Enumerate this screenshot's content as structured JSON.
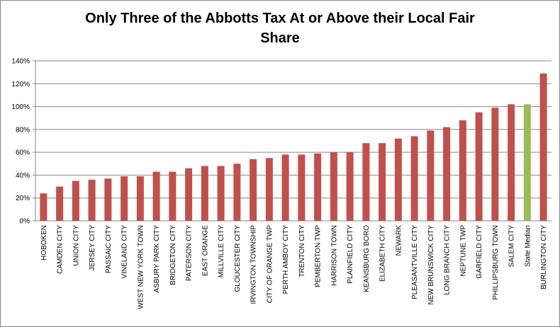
{
  "chart_data": {
    "type": "bar",
    "title": "Only Three of the Abbotts Tax At or Above their Local Fair Share",
    "categories": [
      "HOBOKEN",
      "CAMDEN CITY",
      "UNION CITY",
      "JERSEY CITY",
      "PASSAIC CITY",
      "VINELAND CITY",
      "WEST NEW YORK TOWN",
      "ASBURY PARK CITY",
      "BRIDGETON CITY",
      "PATERSON CITY",
      "EAST ORANGE",
      "MILLVILLE CITY",
      "GLOUCESTER CITY",
      "IRVINGTON TOWNSHIP",
      "CITY OF ORANGE TWP",
      "PERTH AMBOY CITY",
      "TRENTON CITY",
      "PEMBERTON TWP",
      "HARRISON TOWN",
      "PLAINFIELD CITY",
      "KEANSBURG BORO",
      "ELIZABETH CITY",
      "NEWARK",
      "PLEASANTVILLE CITY",
      "NEW BRUNSWICK CITY",
      "LONG BRANCH CITY",
      "NEPTUNE TWP",
      "GARFIELD CITY",
      "PHILLIPSBURG TOWN",
      "SALEM CITY",
      "State Median",
      "BURLINGTON CITY"
    ],
    "values": [
      24,
      30,
      35,
      36,
      37,
      39,
      39,
      43,
      43,
      46,
      48,
      48,
      50,
      54,
      55,
      58,
      58,
      59,
      60,
      60,
      68,
      68,
      72,
      74,
      79,
      82,
      88,
      95,
      99,
      102,
      102,
      129
    ],
    "colors": [
      "#c0504d",
      "#c0504d",
      "#c0504d",
      "#c0504d",
      "#c0504d",
      "#c0504d",
      "#c0504d",
      "#c0504d",
      "#c0504d",
      "#c0504d",
      "#c0504d",
      "#c0504d",
      "#c0504d",
      "#c0504d",
      "#c0504d",
      "#c0504d",
      "#c0504d",
      "#c0504d",
      "#c0504d",
      "#c0504d",
      "#c0504d",
      "#c0504d",
      "#c0504d",
      "#c0504d",
      "#c0504d",
      "#c0504d",
      "#c0504d",
      "#c0504d",
      "#c0504d",
      "#c0504d",
      "#9bbb59",
      "#c0504d"
    ],
    "ylim": [
      0,
      140
    ],
    "yticks": [
      {
        "value": 0,
        "label": "0%"
      },
      {
        "value": 20,
        "label": "20%"
      },
      {
        "value": 40,
        "label": "40%"
      },
      {
        "value": 60,
        "label": "60%"
      },
      {
        "value": 80,
        "label": "80%"
      },
      {
        "value": 100,
        "label": "100%"
      },
      {
        "value": 120,
        "label": "120%"
      },
      {
        "value": 140,
        "label": "140%"
      }
    ],
    "grid": true
  }
}
